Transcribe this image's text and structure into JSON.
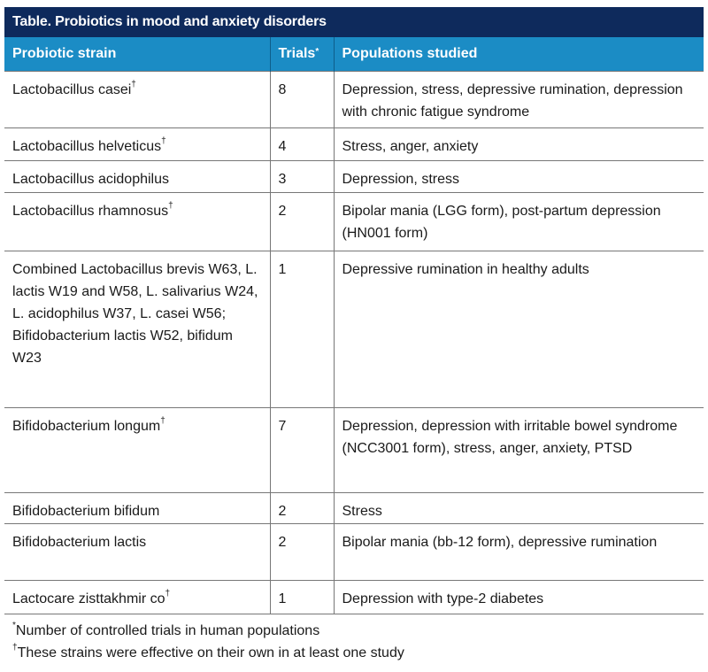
{
  "table": {
    "title": "Table. Probiotics in mood and anxiety disorders",
    "colors": {
      "title_bg": "#0e2a5c",
      "header_bg": "#1b8cc5"
    },
    "headers": {
      "strain": "Probiotic strain",
      "trials": "Trials",
      "trials_mark": "*",
      "populations": "Populations studied"
    },
    "rows": [
      {
        "strain": "Lactobacillus casei",
        "mark": "†",
        "trials": "8",
        "populations": "Depression, stress, depressive rumination, depression with chronic fatigue syndrome"
      },
      {
        "strain": "Lactobacillus helveticus",
        "mark": "†",
        "trials": "4",
        "populations": "Stress, anger, anxiety"
      },
      {
        "strain": "Lactobacillus acidophilus",
        "mark": "",
        "trials": "3",
        "populations": "Depression, stress"
      },
      {
        "strain": "Lactobacillus rhamnosus",
        "mark": "†",
        "trials": "2",
        "populations": "Bipolar mania (LGG form), post-partum depression (HN001 form)"
      },
      {
        "strain": "Combined Lactobacillus brevis W63, L. lactis W19 and W58, L. salivarius W24, L. acidophilus W37, L. casei W56; Bifidobacterium lactis W52, bifidum W23",
        "mark": "",
        "trials": "1",
        "populations": "Depressive rumination in healthy adults"
      },
      {
        "strain": "Bifidobacterium longum",
        "mark": "†",
        "trials": "7",
        "populations": "Depression, depression with irritable bowel syndrome (NCC3001 form), stress, anger, anxiety, PTSD"
      },
      {
        "strain": "Bifidobacterium bifidum",
        "mark": "",
        "trials": "2",
        "populations": "Stress"
      },
      {
        "strain": "Bifidobacterium lactis",
        "mark": "",
        "trials": "2",
        "populations": "Bipolar mania (bb-12 form), depressive rumination"
      },
      {
        "strain": "Lactocare zisttakhmir co",
        "mark": "†",
        "trials": "1",
        "populations": "Depression with type-2 diabetes"
      }
    ],
    "footnotes": [
      {
        "mark": "*",
        "text": "Number of controlled trials in human populations"
      },
      {
        "mark": "†",
        "text": "These strains were effective on their own in at least one study"
      }
    ]
  }
}
